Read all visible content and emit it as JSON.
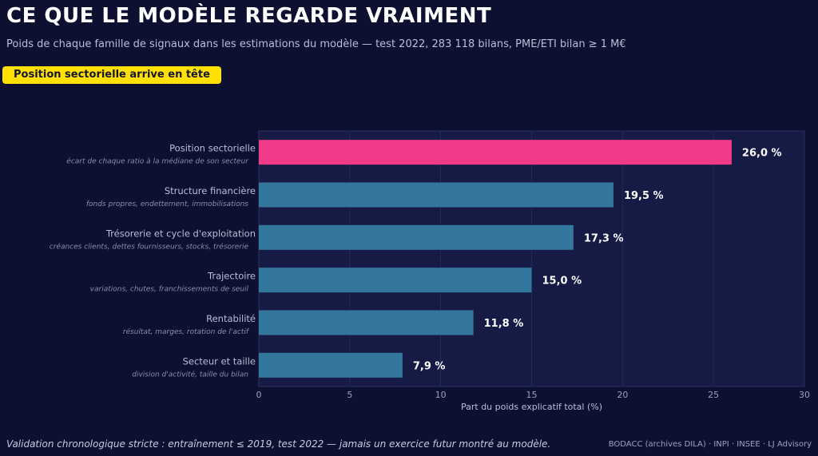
{
  "header": {
    "title": "CE QUE LE MODÈLE REGARDE VRAIMENT",
    "subtitle": "Poids de chaque famille de signaux dans les estimations du modèle — test 2022, 283 118 bilans, PME/ETI bilan ≥ 1 M€",
    "badge": "Position sectorielle arrive en tête"
  },
  "footer": {
    "note": "Validation chronologique stricte : entraînement ≤ 2019, test 2022 — jamais un exercice futur montré au modèle.",
    "source": "BODACC (archives DILA) · INPI · INSEE  ·  LJ Advisory"
  },
  "colors": {
    "highlight": "#f03c88",
    "bar": "#33779d",
    "plot_bg": "#151b44",
    "badge": "#ffe000"
  },
  "chart_data": {
    "type": "bar",
    "orientation": "horizontal",
    "categories": [
      "Position sectorielle",
      "Structure financière",
      "Trésorerie et cycle d'exploitation",
      "Trajectoire",
      "Rentabilité",
      "Secteur et taille"
    ],
    "descriptions": [
      "écart de chaque ratio à la médiane de son secteur",
      "fonds propres, endettement, immobilisations",
      "créances clients, dettes fournisseurs, stocks, trésorerie",
      "variations, chutes, franchissements de seuil",
      "résultat, marges, rotation de l'actif",
      "division d'activité, taille du bilan"
    ],
    "values": [
      26.0,
      19.5,
      17.3,
      15.0,
      11.8,
      7.9
    ],
    "value_labels": [
      "26,0 %",
      "19,5 %",
      "17,3 %",
      "15,0 %",
      "11,8 %",
      "7,9 %"
    ],
    "highlight_index": 0,
    "xlabel": "Part du poids explicatif total (%)",
    "xlim": [
      0,
      30
    ],
    "xticks": [
      0,
      5,
      10,
      15,
      20,
      25,
      30
    ],
    "grid": true
  }
}
